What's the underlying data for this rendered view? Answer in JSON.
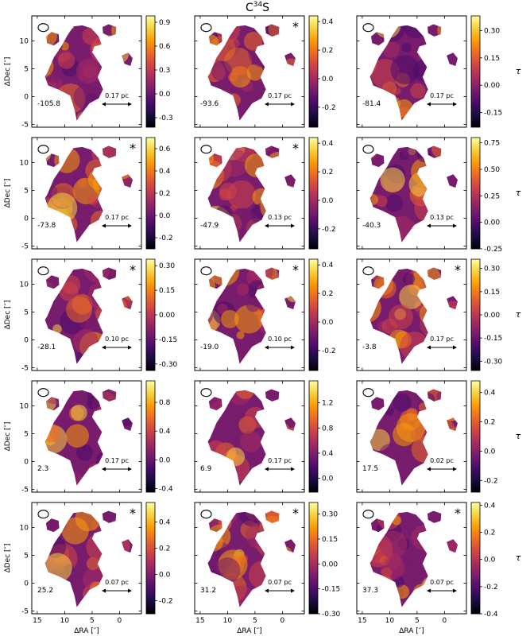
{
  "figure": {
    "title_main": "C",
    "title_sup": "34",
    "title_tail": "S",
    "xlabel": "ΔRA [″]",
    "ylabel": "ΔDec [″]",
    "colorbar_label": "τ",
    "colormap": [
      "#000004",
      "#1b0c41",
      "#4a0c6b",
      "#781c6d",
      "#a52c60",
      "#cf4446",
      "#ed6925",
      "#fb9b06",
      "#f7d13d",
      "#fcffa4"
    ],
    "panel_bg": "#ffffff"
  },
  "chart_data": {
    "type": "heatmap",
    "title": "C34S",
    "xlabel": "ΔRA [″]",
    "ylabel": "ΔDec [″]",
    "xlim": [
      16,
      -4
    ],
    "ylim": [
      -5.5,
      14.5
    ],
    "xticks": [
      15,
      10,
      5,
      0
    ],
    "yticks": [
      -5,
      0,
      5,
      10
    ],
    "colorbar_label": "τ",
    "panels": [
      {
        "velocity": "-105.8",
        "scale": "0.17 pc",
        "star": false,
        "cbar_min": -0.42,
        "cbar_max": 0.98,
        "cbar_ticks": [
          "-0.3",
          "0.0",
          "0.3",
          "0.6",
          "0.9"
        ],
        "cbar_tick_values": [
          -0.3,
          0.0,
          0.3,
          0.6,
          0.9
        ]
      },
      {
        "velocity": "-93.6",
        "scale": "0.17 pc",
        "star": true,
        "cbar_min": -0.34,
        "cbar_max": 0.44,
        "cbar_ticks": [
          "-0.2",
          "0.0",
          "0.2",
          "0.4"
        ],
        "cbar_tick_values": [
          -0.2,
          0.0,
          0.2,
          0.4
        ]
      },
      {
        "velocity": "-81.4",
        "scale": "0.17 pc",
        "star": false,
        "cbar_min": -0.23,
        "cbar_max": 0.38,
        "cbar_ticks": [
          "-0.15",
          "0.00",
          "0.15",
          "0.30"
        ],
        "cbar_tick_values": [
          -0.15,
          0.0,
          0.15,
          0.3
        ]
      },
      {
        "velocity": "-73.8",
        "scale": "0.17 pc",
        "star": true,
        "cbar_min": -0.3,
        "cbar_max": 0.7,
        "cbar_ticks": [
          "-0.2",
          "0.0",
          "0.2",
          "0.4",
          "0.6"
        ],
        "cbar_tick_values": [
          -0.2,
          0.0,
          0.2,
          0.4,
          0.6
        ]
      },
      {
        "velocity": "-47.9",
        "scale": "0.13 pc",
        "star": true,
        "cbar_min": -0.34,
        "cbar_max": 0.44,
        "cbar_ticks": [
          "-0.2",
          "0.0",
          "0.2",
          "0.4"
        ],
        "cbar_tick_values": [
          -0.2,
          0.0,
          0.2,
          0.4
        ]
      },
      {
        "velocity": "-40.3",
        "scale": "0.13 pc",
        "star": false,
        "cbar_min": -0.25,
        "cbar_max": 0.8,
        "cbar_ticks": [
          "-0.25",
          "0.00",
          "0.25",
          "0.50",
          "0.75"
        ],
        "cbar_tick_values": [
          -0.25,
          0.0,
          0.25,
          0.5,
          0.75
        ]
      },
      {
        "velocity": "-28.1",
        "scale": "0.10 pc",
        "star": true,
        "cbar_min": -0.34,
        "cbar_max": 0.34,
        "cbar_ticks": [
          "-0.30",
          "-0.15",
          "0.00",
          "0.15",
          "0.30"
        ],
        "cbar_tick_values": [
          -0.3,
          -0.15,
          0.0,
          0.15,
          0.3
        ]
      },
      {
        "velocity": "-19.0",
        "scale": "0.10 pc",
        "star": true,
        "cbar_min": -0.34,
        "cbar_max": 0.44,
        "cbar_ticks": [
          "-0.2",
          "0.0",
          "0.2",
          "0.4"
        ],
        "cbar_tick_values": [
          -0.2,
          0.0,
          0.2,
          0.4
        ]
      },
      {
        "velocity": "-3.8",
        "scale": "0.17 pc",
        "star": true,
        "cbar_min": -0.36,
        "cbar_max": 0.36,
        "cbar_ticks": [
          "-0.30",
          "-0.15",
          "0.00",
          "0.15",
          "0.30"
        ],
        "cbar_tick_values": [
          -0.3,
          -0.15,
          0.0,
          0.15,
          0.3
        ]
      },
      {
        "velocity": "2.3",
        "scale": "0.17 pc",
        "star": false,
        "cbar_min": -0.45,
        "cbar_max": 1.1,
        "cbar_ticks": [
          "-0.4",
          "0.0",
          "0.4",
          "0.8"
        ],
        "cbar_tick_values": [
          -0.4,
          0.0,
          0.4,
          0.8
        ]
      },
      {
        "velocity": "6.9",
        "scale": "0.17 pc",
        "star": false,
        "cbar_min": -0.22,
        "cbar_max": 1.55,
        "cbar_ticks": [
          "0.0",
          "0.4",
          "0.8",
          "1.2"
        ],
        "cbar_tick_values": [
          0.0,
          0.4,
          0.8,
          1.2
        ]
      },
      {
        "velocity": "17.5",
        "scale": "0.02 pc",
        "star": false,
        "cbar_min": -0.28,
        "cbar_max": 0.48,
        "cbar_ticks": [
          "-0.2",
          "0.0",
          "0.2",
          "0.4"
        ],
        "cbar_tick_values": [
          -0.2,
          0.0,
          0.2,
          0.4
        ]
      },
      {
        "velocity": "25.2",
        "scale": "0.07 pc",
        "star": true,
        "cbar_min": -0.3,
        "cbar_max": 0.55,
        "cbar_ticks": [
          "-0.2",
          "0.0",
          "0.2",
          "0.4"
        ],
        "cbar_tick_values": [
          -0.2,
          0.0,
          0.2,
          0.4
        ]
      },
      {
        "velocity": "31.2",
        "scale": "0.07 pc",
        "star": true,
        "cbar_min": -0.3,
        "cbar_max": 0.37,
        "cbar_ticks": [
          "-0.30",
          "-0.15",
          "0.00",
          "0.15",
          "0.30"
        ],
        "cbar_tick_values": [
          -0.3,
          -0.15,
          0.0,
          0.15,
          0.3
        ]
      },
      {
        "velocity": "37.3",
        "scale": "0.07 pc",
        "star": true,
        "cbar_min": -0.4,
        "cbar_max": 0.42,
        "cbar_ticks": [
          "-0.4",
          "-0.2",
          "0.0",
          "0.2",
          "0.4"
        ],
        "cbar_tick_values": [
          -0.4,
          -0.2,
          0.0,
          0.2,
          0.4
        ]
      }
    ]
  }
}
